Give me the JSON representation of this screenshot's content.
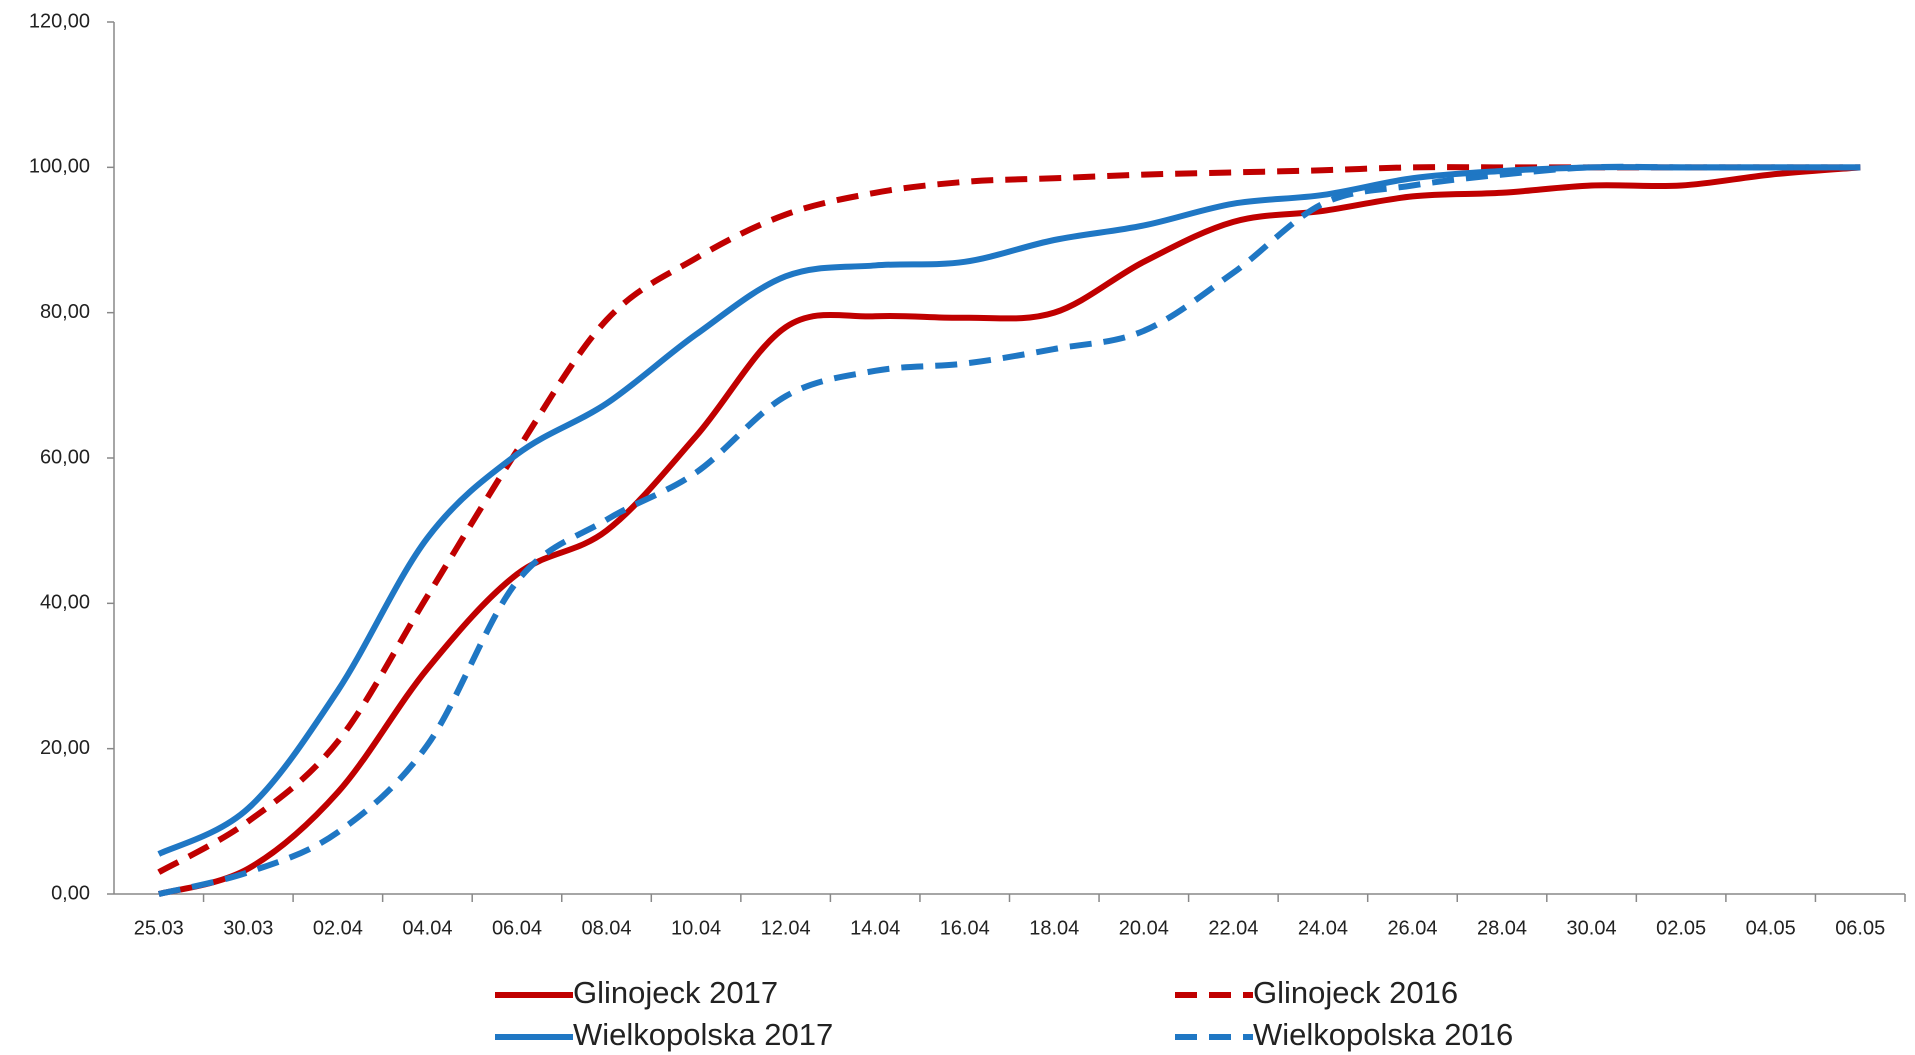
{
  "chart_data": {
    "type": "line",
    "categories": [
      "25.03",
      "30.03",
      "02.04",
      "04.04",
      "06.04",
      "08.04",
      "10.04",
      "12.04",
      "14.04",
      "16.04",
      "18.04",
      "20.04",
      "22.04",
      "24.04",
      "26.04",
      "28.04",
      "30.04",
      "02.05",
      "04.05",
      "06.05"
    ],
    "series": [
      {
        "name": "Glinojeck 2017",
        "color": "#c00000",
        "style": "solid",
        "values": [
          0,
          3.5,
          14,
          31,
          44,
          50,
          63,
          78,
          79.5,
          79.3,
          80,
          87,
          92.5,
          94,
          96,
          96.5,
          97.5,
          97.5,
          99,
          100
        ]
      },
      {
        "name": "Glinojeck 2016",
        "color": "#c00000",
        "style": "dashed",
        "values": [
          3,
          10,
          21,
          41,
          61,
          79,
          87.5,
          93.5,
          96.5,
          98,
          98.5,
          99,
          99.3,
          99.6,
          100,
          100,
          100,
          100,
          100,
          100
        ]
      },
      {
        "name": "Wielkopolska 2017",
        "color": "#1f77c4",
        "style": "solid",
        "values": [
          5.5,
          11.8,
          28,
          49,
          60.5,
          67.5,
          77,
          85,
          86.5,
          87,
          90,
          92,
          95,
          96.2,
          98.5,
          99.5,
          100,
          100,
          100,
          100
        ]
      },
      {
        "name": "Wielkopolska 2016",
        "color": "#1f77c4",
        "style": "dashed",
        "values": [
          0,
          3,
          8.5,
          20.5,
          43,
          51.5,
          58,
          68.5,
          72,
          73,
          75,
          77.5,
          85.5,
          95,
          97.5,
          99,
          100,
          100,
          100,
          100
        ]
      }
    ],
    "ylim": [
      0,
      120
    ],
    "yticks": [
      {
        "value": 0,
        "label": "0,00"
      },
      {
        "value": 20,
        "label": "20,00"
      },
      {
        "value": 40,
        "label": "40,00"
      },
      {
        "value": 60,
        "label": "60,00"
      },
      {
        "value": 80,
        "label": "80,00"
      },
      {
        "value": 100,
        "label": "100,00"
      },
      {
        "value": 120,
        "label": "120,00"
      }
    ],
    "legend": "bottom"
  }
}
